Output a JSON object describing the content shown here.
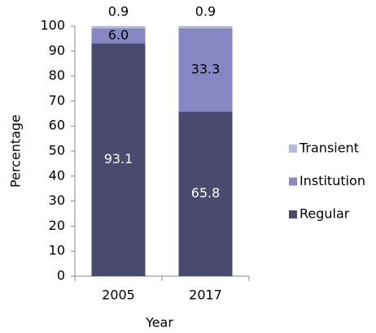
{
  "chart_data": {
    "type": "stacked_bar",
    "x_label": "Year",
    "y_label": "Percentage",
    "categories": [
      "2005",
      "2017"
    ],
    "series": [
      {
        "name": "Regular",
        "color": "#4a4a6e",
        "values": [
          93.1,
          65.8
        ],
        "value_labels": [
          "93.1",
          "65.8"
        ]
      },
      {
        "name": "Institution",
        "color": "#8787c3",
        "values": [
          6.0,
          33.3
        ],
        "value_labels": [
          "6.0",
          "33.3"
        ]
      },
      {
        "name": "Transient",
        "color": "#b8b8dd",
        "values": [
          0.9,
          0.9
        ],
        "value_labels": [
          "0.9",
          "0.9"
        ]
      }
    ],
    "ylim": [
      0,
      100
    ],
    "yticks": [
      0,
      10,
      20,
      30,
      40,
      50,
      60,
      70,
      80,
      90,
      100
    ],
    "legend": "right"
  }
}
